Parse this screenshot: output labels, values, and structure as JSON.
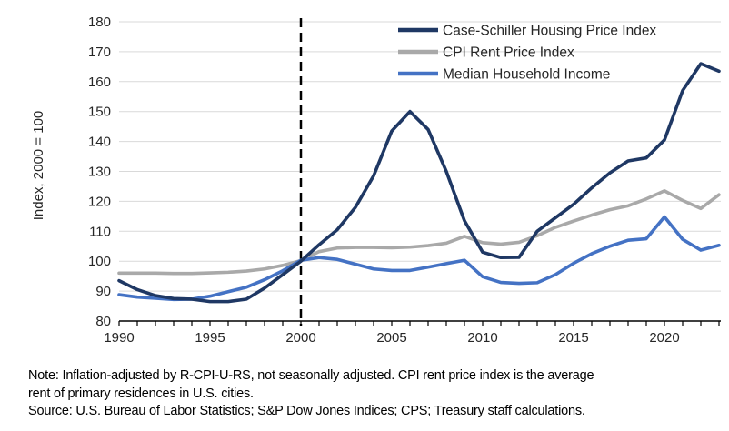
{
  "chart": {
    "y_axis_title": "Index, 2000 = 100",
    "y_ticks": [
      80,
      90,
      100,
      110,
      120,
      130,
      140,
      150,
      160,
      170,
      180
    ],
    "x_tick_years": [
      1990,
      1995,
      2000,
      2005,
      2010,
      2015,
      2020
    ],
    "dashed_line_year": 2000,
    "grid_color": "#d9d9d9",
    "axis_color": "#000000",
    "dashed_line_color": "#000000"
  },
  "chart_data": {
    "type": "line",
    "title": "",
    "xlabel": "",
    "ylabel": "Index, 2000 = 100",
    "xlim": [
      1990,
      2023.6
    ],
    "ylim": [
      80,
      180
    ],
    "grid": "horizontal",
    "legend_position": "top-right-inside",
    "annotations": [
      {
        "type": "vline-dashed",
        "x": 2000
      }
    ],
    "x": [
      1990,
      1991,
      1992,
      1993,
      1994,
      1995,
      1996,
      1997,
      1998,
      1999,
      2000,
      2001,
      2002,
      2003,
      2004,
      2005,
      2006,
      2007,
      2008,
      2009,
      2010,
      2011,
      2012,
      2013,
      2014,
      2015,
      2016,
      2017,
      2018,
      2019,
      2020,
      2021,
      2022,
      2023
    ],
    "series": [
      {
        "name": "Case-Schiller Housing Price Index",
        "color": "#1F3864",
        "values": [
          93.5,
          90.5,
          88.5,
          87.5,
          87.3,
          86.5,
          86.5,
          87.3,
          91,
          95.5,
          100,
          105.5,
          110.5,
          118,
          128.5,
          143.5,
          150,
          144,
          130,
          113.5,
          103,
          101.2,
          101.3,
          110,
          114.5,
          119,
          124.5,
          129.5,
          133.5,
          134.5,
          140.5,
          157,
          166,
          163.5
        ]
      },
      {
        "name": "CPI Rent Price Index",
        "color": "#A9A9A9",
        "values": [
          96,
          96,
          96,
          95.9,
          95.9,
          96.1,
          96.3,
          96.7,
          97.4,
          98.6,
          100.2,
          103.2,
          104.4,
          104.6,
          104.6,
          104.5,
          104.7,
          105.2,
          106,
          108.3,
          106.2,
          105.7,
          106.3,
          108.5,
          111.3,
          113.4,
          115.4,
          117.2,
          118.5,
          120.8,
          123.5,
          120.3,
          117.6,
          122.2
        ]
      },
      {
        "name": "Median Household Income",
        "color": "#4472C4",
        "values": [
          88.8,
          88,
          87.6,
          87.2,
          87.3,
          88.3,
          89.8,
          91.3,
          93.8,
          96.8,
          100.3,
          101.2,
          100.6,
          99,
          97.4,
          96.9,
          96.9,
          98,
          99.2,
          100.3,
          94.8,
          92.9,
          92.6,
          92.8,
          95.5,
          99.3,
          102.5,
          105,
          107,
          107.5,
          114.8,
          107.3,
          103.7,
          105.3
        ]
      }
    ]
  },
  "notes": {
    "line1": "Note: Inflation-adjusted by R-CPI-U-RS, not seasonally adjusted. CPI rent price index is the average",
    "line2": "rent of primary residences in U.S. cities.",
    "line3": "Source: U.S. Bureau of Labor Statistics; S&P Dow Jones Indices; CPS; Treasury staff calculations."
  }
}
